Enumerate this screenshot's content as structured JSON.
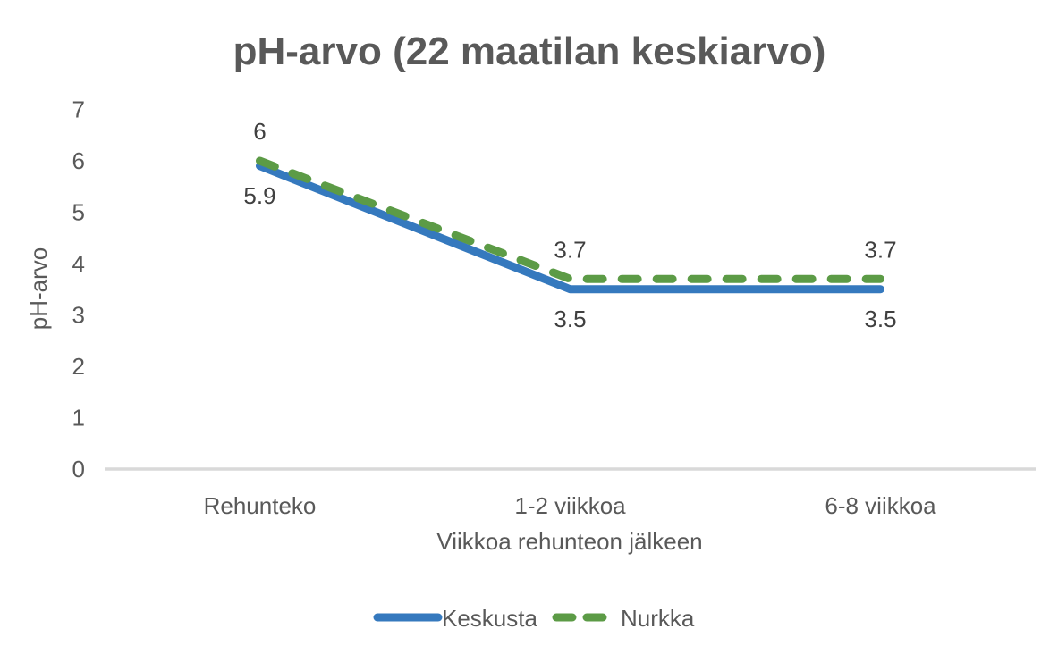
{
  "title": "pH-arvo (22 maatilan keskiarvo)",
  "chart_data": {
    "type": "line",
    "title": "pH-arvo (22 maatilan keskiarvo)",
    "xlabel": "Viikkoa rehunteon jälkeen",
    "ylabel": "pH-arvo",
    "categories": [
      "Rehunteko",
      "1-2 viikkoa",
      "6-8 viikkoa"
    ],
    "series": [
      {
        "name": "Keskusta",
        "values": [
          5.9,
          3.5,
          3.5
        ],
        "color": "#3579BE",
        "dash": "solid",
        "label_placement": "below"
      },
      {
        "name": "Nurkka",
        "values": [
          6,
          3.7,
          3.7
        ],
        "color": "#5C9B46",
        "dash": "dashed",
        "label_placement": "above"
      }
    ],
    "ylim": [
      0,
      7
    ],
    "yticks": [
      0,
      1,
      2,
      3,
      4,
      5,
      6,
      7
    ],
    "grid": false,
    "data_labels": true,
    "legend_position": "bottom",
    "axis_line_color": "#D9D9D9",
    "background_color": "#FFFFFF"
  }
}
